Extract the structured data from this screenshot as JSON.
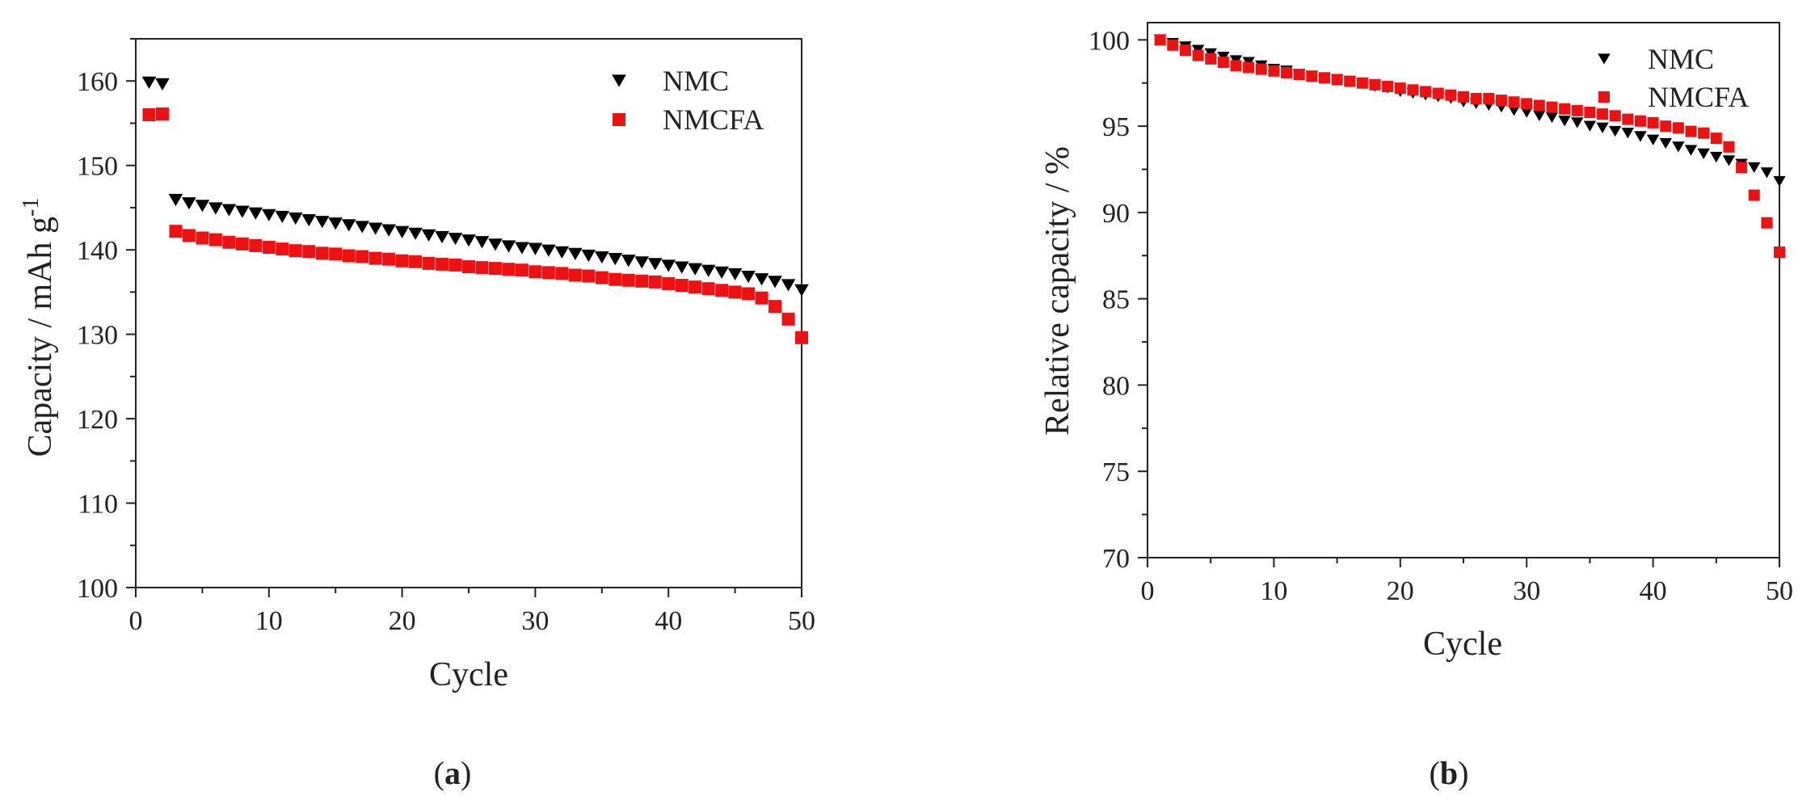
{
  "colors": {
    "nmc": "#000000",
    "nmcfa": "#ee1111",
    "axis": "#222222"
  },
  "chart_data": [
    {
      "type": "scatter",
      "panel_label": {
        "open": "(",
        "letter": "a",
        "close": ")"
      },
      "title": "",
      "xlabel": "Cycle",
      "ylabel": "Capacity / mAh g",
      "ylabel_sup": "-1",
      "xlim": [
        0,
        50
      ],
      "ylim": [
        100,
        165
      ],
      "xticks": [
        0,
        10,
        20,
        30,
        40,
        50
      ],
      "yticks": [
        100,
        110,
        120,
        130,
        140,
        150,
        160
      ],
      "legend_position": "top-right",
      "series": [
        {
          "name": "NMC",
          "marker": "triangle-down",
          "color": "#000000",
          "x": [
            1,
            2,
            3,
            4,
            5,
            6,
            7,
            8,
            9,
            10,
            11,
            12,
            13,
            14,
            15,
            16,
            17,
            18,
            19,
            20,
            21,
            22,
            23,
            24,
            25,
            26,
            27,
            28,
            29,
            30,
            31,
            32,
            33,
            34,
            35,
            36,
            37,
            38,
            39,
            40,
            41,
            42,
            43,
            44,
            45,
            46,
            47,
            48,
            49,
            50
          ],
          "y": [
            159.8,
            159.6,
            145.9,
            145.5,
            145.2,
            144.9,
            144.7,
            144.5,
            144.3,
            144.1,
            143.9,
            143.7,
            143.5,
            143.3,
            143.1,
            142.9,
            142.7,
            142.5,
            142.3,
            142.1,
            141.9,
            141.7,
            141.5,
            141.3,
            141.1,
            140.9,
            140.6,
            140.4,
            140.2,
            140.1,
            139.9,
            139.7,
            139.5,
            139.3,
            139.1,
            138.9,
            138.7,
            138.5,
            138.3,
            138.1,
            137.9,
            137.7,
            137.5,
            137.3,
            137.1,
            136.8,
            136.5,
            136.2,
            135.8,
            135.2
          ]
        },
        {
          "name": "NMCFA",
          "marker": "square",
          "color": "#ee1111",
          "x": [
            1,
            2,
            3,
            4,
            5,
            6,
            7,
            8,
            9,
            10,
            11,
            12,
            13,
            14,
            15,
            16,
            17,
            18,
            19,
            20,
            21,
            22,
            23,
            24,
            25,
            26,
            27,
            28,
            29,
            30,
            31,
            32,
            33,
            34,
            35,
            36,
            37,
            38,
            39,
            40,
            41,
            42,
            43,
            44,
            45,
            46,
            47,
            48,
            49,
            50
          ],
          "y": [
            156.0,
            156.1,
            142.2,
            141.7,
            141.4,
            141.2,
            140.9,
            140.7,
            140.5,
            140.3,
            140.1,
            139.9,
            139.8,
            139.6,
            139.5,
            139.3,
            139.2,
            139.0,
            138.9,
            138.7,
            138.6,
            138.4,
            138.3,
            138.2,
            138.0,
            137.9,
            137.8,
            137.7,
            137.6,
            137.4,
            137.3,
            137.2,
            137.0,
            136.9,
            136.7,
            136.5,
            136.4,
            136.3,
            136.2,
            136.0,
            135.8,
            135.6,
            135.4,
            135.2,
            135.0,
            134.8,
            134.3,
            133.3,
            131.8,
            129.6
          ]
        }
      ]
    },
    {
      "type": "scatter",
      "panel_label": {
        "open": "(",
        "letter": "b",
        "close": ")"
      },
      "title": "",
      "xlabel": "Cycle",
      "ylabel": "Relative capacity / %",
      "xlim": [
        0,
        50
      ],
      "ylim": [
        70,
        101
      ],
      "xticks": [
        0,
        10,
        20,
        30,
        40,
        50
      ],
      "yticks": [
        70,
        75,
        80,
        85,
        90,
        95,
        100
      ],
      "legend_position": "top-right",
      "series": [
        {
          "name": "NMC",
          "marker": "triangle-down",
          "color": "#000000",
          "x": [
            1,
            2,
            3,
            4,
            5,
            6,
            7,
            8,
            9,
            10,
            11,
            12,
            13,
            14,
            15,
            16,
            17,
            18,
            19,
            20,
            21,
            22,
            23,
            24,
            25,
            26,
            27,
            28,
            29,
            30,
            31,
            32,
            33,
            34,
            35,
            36,
            37,
            38,
            39,
            40,
            41,
            42,
            43,
            44,
            45,
            46,
            47,
            48,
            49,
            50
          ],
          "y": [
            100.0,
            99.8,
            99.6,
            99.4,
            99.2,
            99.0,
            98.8,
            98.7,
            98.5,
            98.3,
            98.2,
            98.0,
            97.9,
            97.8,
            97.7,
            97.6,
            97.5,
            97.3,
            97.2,
            97.0,
            96.9,
            96.8,
            96.7,
            96.6,
            96.4,
            96.3,
            96.2,
            96.1,
            95.9,
            95.8,
            95.6,
            95.5,
            95.3,
            95.2,
            95.0,
            94.9,
            94.7,
            94.6,
            94.4,
            94.2,
            94.0,
            93.8,
            93.6,
            93.4,
            93.2,
            93.0,
            92.8,
            92.6,
            92.3,
            91.8
          ]
        },
        {
          "name": "NMCFA",
          "marker": "square",
          "color": "#ee1111",
          "x": [
            1,
            2,
            3,
            4,
            5,
            6,
            7,
            8,
            9,
            10,
            11,
            12,
            13,
            14,
            15,
            16,
            17,
            18,
            19,
            20,
            21,
            22,
            23,
            24,
            25,
            26,
            27,
            28,
            29,
            30,
            31,
            32,
            33,
            34,
            35,
            36,
            37,
            38,
            39,
            40,
            41,
            42,
            43,
            44,
            45,
            46,
            47,
            48,
            49,
            50
          ],
          "y": [
            100.0,
            99.7,
            99.4,
            99.1,
            98.9,
            98.7,
            98.5,
            98.4,
            98.3,
            98.2,
            98.1,
            98.0,
            97.9,
            97.8,
            97.7,
            97.6,
            97.5,
            97.4,
            97.3,
            97.2,
            97.1,
            97.0,
            96.9,
            96.8,
            96.7,
            96.6,
            96.6,
            96.5,
            96.4,
            96.3,
            96.2,
            96.1,
            96.0,
            95.9,
            95.8,
            95.7,
            95.6,
            95.4,
            95.3,
            95.2,
            95.0,
            94.9,
            94.7,
            94.6,
            94.3,
            93.8,
            92.6,
            91.0,
            89.4,
            87.7
          ]
        }
      ]
    }
  ]
}
